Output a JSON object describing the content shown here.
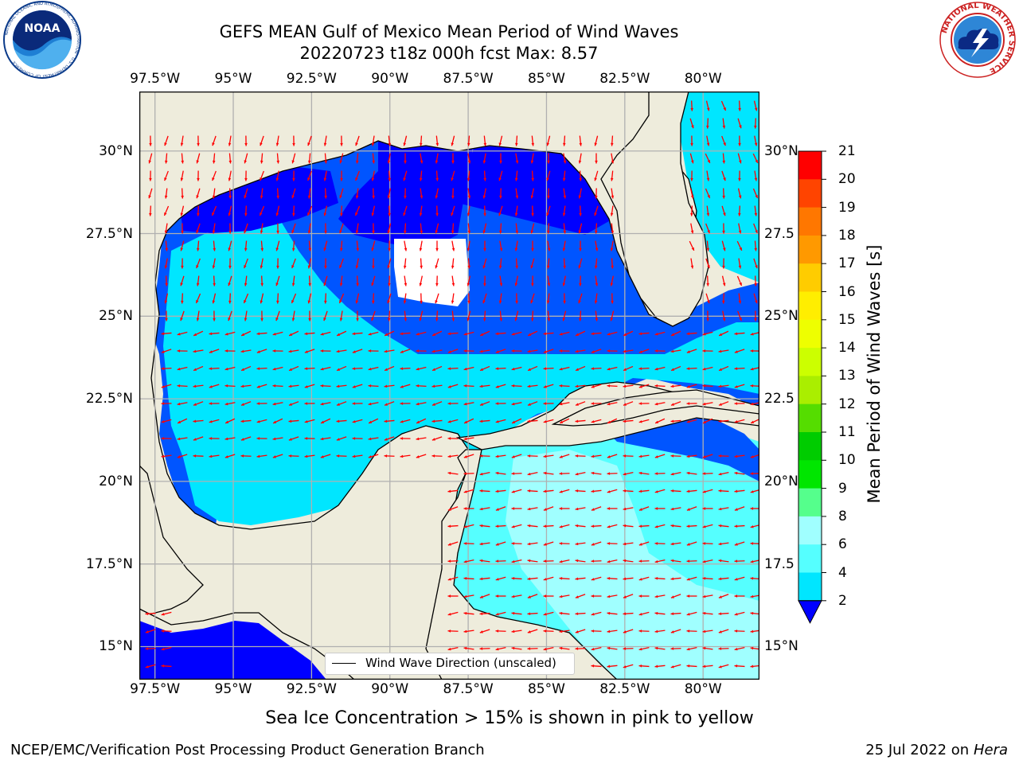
{
  "header": {
    "title_line1": "GEFS MEAN Gulf of Mexico Mean Period of Wind Waves",
    "title_line2": "20220723 t18z 000h fcst   Max: 8.57",
    "noaa_logo_text": "NOAA",
    "noaa_ring_text": "NATIONAL OCEANIC AND ATMOSPHERIC ADMINISTRATION · U.S. DEPARTMENT OF COMMERCE",
    "nws_ring_text": "NATIONAL WEATHER SERVICE"
  },
  "map": {
    "lon_ticks": [
      "97.5°W",
      "95°W",
      "92.5°W",
      "90°W",
      "87.5°W",
      "85°W",
      "82.5°W",
      "80°W"
    ],
    "lat_ticks_left": [
      "30°N",
      "27.5°N",
      "25°N",
      "22.5°N",
      "20°N",
      "17.5°N",
      "15°N"
    ],
    "lat_ticks_right": [
      "30°N",
      "27.5",
      "25°N",
      "22.5",
      "20°N",
      "17.5",
      "15°N"
    ],
    "lon_range": [
      -98,
      -78.2
    ],
    "lat_range": [
      14.0,
      31.8
    ],
    "legend_label": "Wind Wave Direction (unscaled)",
    "colors": {
      "land": "#eeecdc",
      "grid": "#b0b0b0",
      "arrow": "#ff0000",
      "coast": "#000000"
    }
  },
  "colorbar": {
    "title": "Mean Period of Wind Waves [s]",
    "tick_labels": [
      "2",
      "4",
      "6",
      "8",
      "9",
      "10",
      "11",
      "12",
      "13",
      "14",
      "15",
      "16",
      "17",
      "18",
      "19",
      "20",
      "21"
    ],
    "colors": [
      "#0055ff",
      "#00e6ff",
      "#55ffff",
      "#a0ffff",
      "#55ff8c",
      "#00e600",
      "#00cc00",
      "#55dd00",
      "#aaee00",
      "#ccff00",
      "#eeff00",
      "#ffee00",
      "#ffcc00",
      "#ff9900",
      "#ff7700",
      "#ff4400",
      "#ff0000"
    ],
    "under_color": "#0000ff"
  },
  "footer": {
    "caption": "Sea Ice Concentration > 15% is shown in pink to yellow",
    "left": "NCEP/EMC/Verification Post Processing Product Generation Branch",
    "right_date": "25 Jul 2022 on ",
    "right_host": "Hera"
  }
}
